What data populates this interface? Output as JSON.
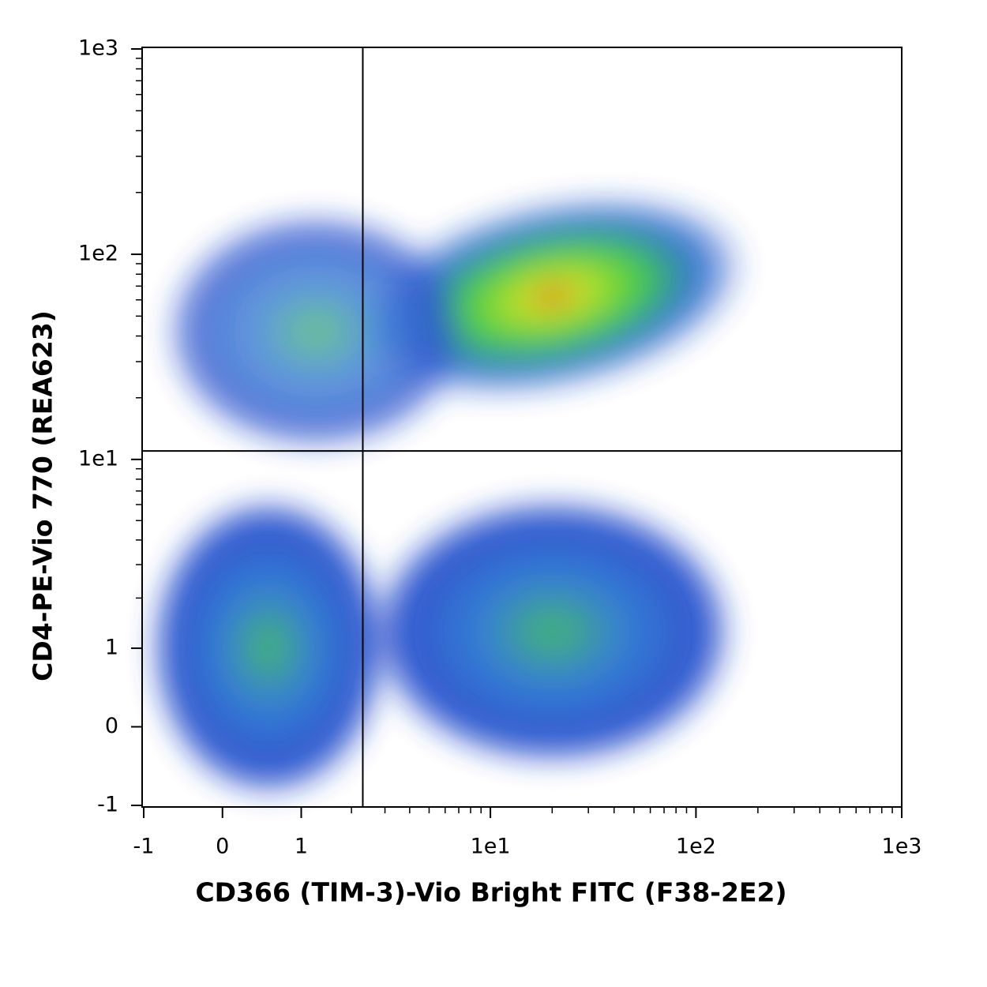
{
  "chart_data": {
    "type": "density-scatter",
    "xlabel": "CD366 (TIM-3)-Vio Bright FITC (F38-2E2)",
    "ylabel": "CD4-PE-Vio 770 (REA623)",
    "xscale": "biexponential",
    "yscale": "biexponential",
    "xlim": [
      -1,
      1000
    ],
    "ylim": [
      -1,
      1000
    ],
    "xticks": [
      -1,
      0,
      1,
      {
        "value": 10,
        "label": "1e1"
      },
      {
        "value": 100,
        "label": "1e2"
      },
      {
        "value": 1000,
        "label": "1e3"
      }
    ],
    "yticks": [
      -1,
      0,
      1,
      {
        "value": 10,
        "label": "1e1"
      },
      {
        "value": 100,
        "label": "1e2"
      },
      {
        "value": 1000,
        "label": "1e3"
      }
    ],
    "xminorticks": [
      2,
      3,
      4,
      5,
      6,
      7,
      8,
      9,
      20,
      30,
      40,
      50,
      60,
      70,
      80,
      90,
      200,
      300,
      400,
      500,
      600,
      700,
      800,
      900
    ],
    "yminorticks": [
      2,
      3,
      4,
      5,
      6,
      7,
      8,
      9,
      20,
      30,
      40,
      50,
      60,
      70,
      80,
      90,
      200,
      300,
      400,
      500,
      600,
      700,
      800,
      900
    ],
    "quadrant_gate": {
      "x": 2.3,
      "y": 11
    }
  }
}
